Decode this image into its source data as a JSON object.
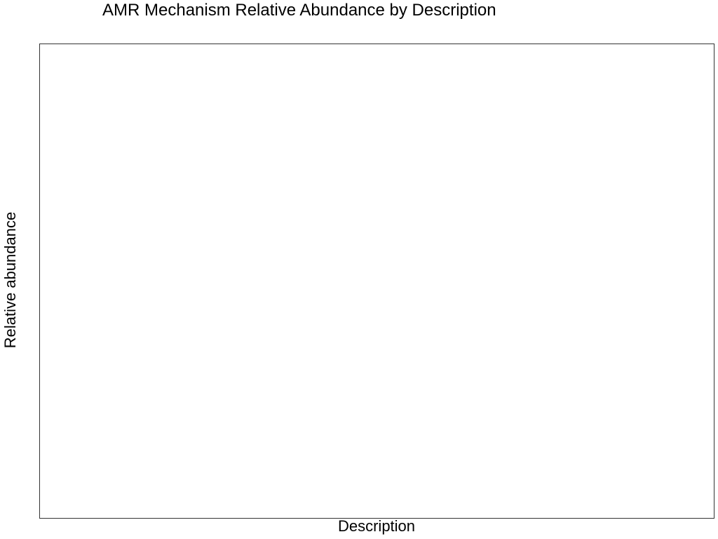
{
  "chart_data": {
    "type": "bar",
    "title": "AMR Mechanism Relative Abundance by Description",
    "xlabel": "Description",
    "ylabel": "Relative abundance",
    "categories": [],
    "series": [],
    "grid": false,
    "legend": "none"
  }
}
